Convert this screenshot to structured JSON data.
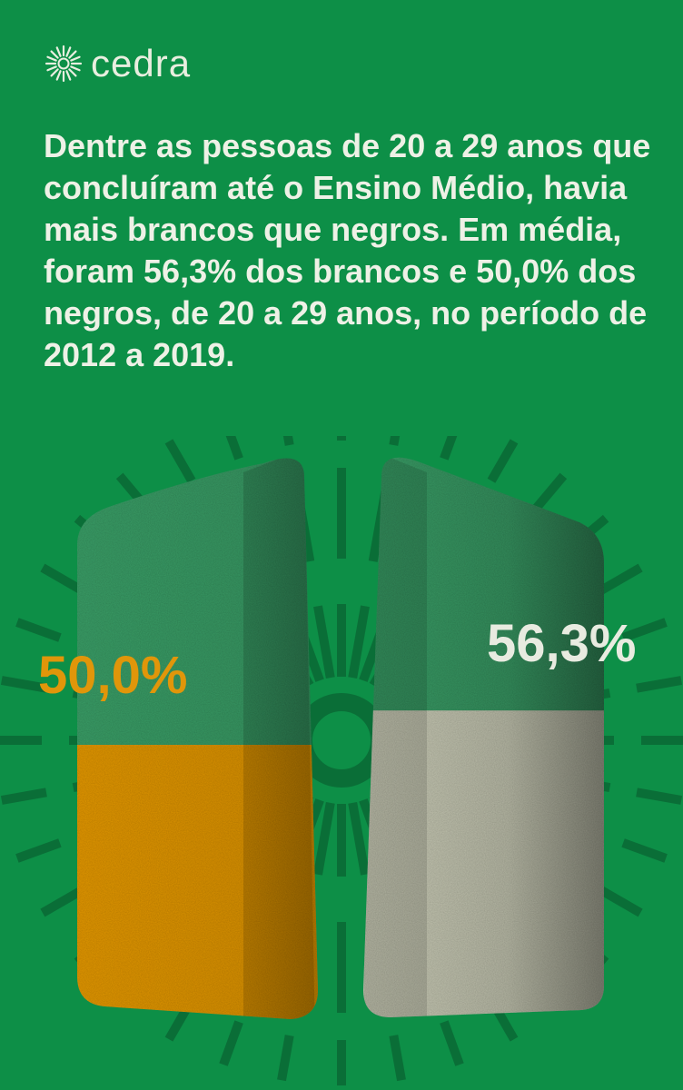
{
  "brand": {
    "name": "cedra"
  },
  "headline": "Dentre as pessoas de 20 a 29 anos que concluíram até o Ensino Médio, havia mais brancos que negros. Em média, foram 56,3% dos brancos e 50,0% dos negros, de 20 a 29 anos, no período de 2012 a 2019.",
  "colors": {
    "background": "#0d8f47",
    "container": "#3a9c66",
    "container_dark": "#2c7a4e",
    "negros": "#e0960a",
    "brancos": "#c9cbb6"
  },
  "chart_data": {
    "type": "bar",
    "categories": [
      "",
      ""
    ],
    "values": [
      50.0,
      56.3
    ],
    "value_labels": [
      "50,0%",
      "56,3%"
    ],
    "ylim": [
      0,
      100
    ],
    "grid": false,
    "legend": "none"
  }
}
